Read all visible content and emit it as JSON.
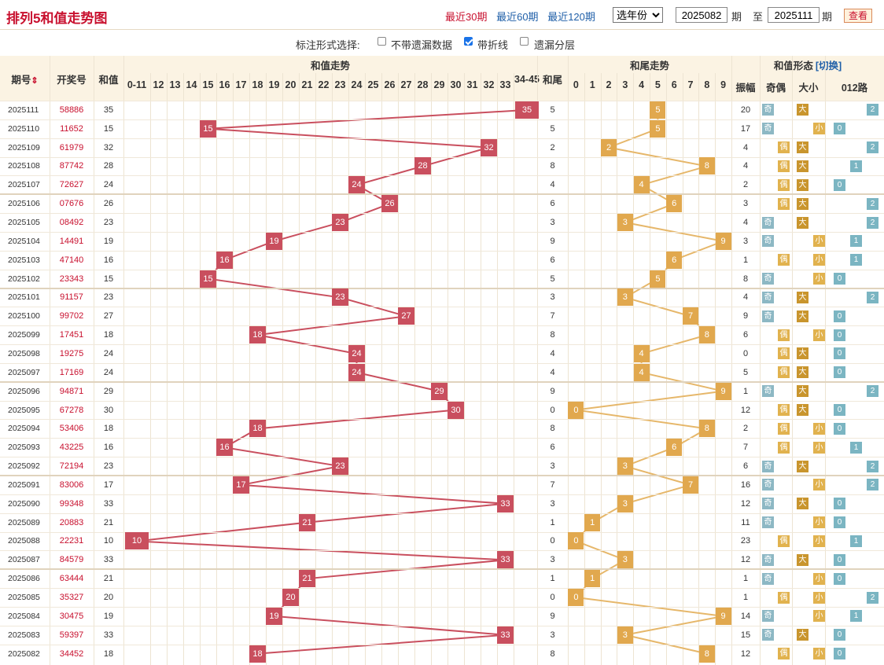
{
  "page": {
    "title": "排列5和值走势图"
  },
  "toolbar": {
    "links": [
      "最近30期",
      "最近60期",
      "最近120期"
    ],
    "active_link": "最近30期",
    "year_select": "选年份",
    "from_value": "2025082",
    "qi1": "期",
    "zhi": "至",
    "to_value": "2025111",
    "qi2": "期",
    "query_button": "查看"
  },
  "options": {
    "label": "标注形式选择:",
    "items": [
      {
        "label": "不带遗漏数据",
        "checked": false
      },
      {
        "label": "带折线",
        "checked": true
      },
      {
        "label": "遗漏分层",
        "checked": false
      }
    ]
  },
  "header": {
    "period": "期号",
    "sort_glyph": "⇕",
    "number": "开奖号",
    "sum": "和值",
    "sum_trend": "和值走势",
    "sum_cols": [
      "0-11",
      "12",
      "13",
      "14",
      "15",
      "16",
      "17",
      "18",
      "19",
      "20",
      "21",
      "22",
      "23",
      "24",
      "25",
      "26",
      "27",
      "28",
      "29",
      "30",
      "31",
      "32",
      "33",
      "34-45"
    ],
    "tail": "和尾",
    "tail_trend": "和尾走势",
    "tail_cols": [
      "0",
      "1",
      "2",
      "3",
      "4",
      "5",
      "6",
      "7",
      "8",
      "9"
    ],
    "form": "和值形态",
    "switch": "[切换]",
    "amplitude": "振幅",
    "odd_even": "奇偶",
    "big_small": "大小",
    "route": "012路"
  },
  "labels": {
    "odd": "奇",
    "even": "偶",
    "big": "大",
    "small": "小"
  },
  "rows": [
    {
      "p": "2025111",
      "n": "58886",
      "s": 35,
      "t": 5,
      "a": 20,
      "oe": "奇",
      "bs": "大",
      "r": 2
    },
    {
      "p": "2025110",
      "n": "11652",
      "s": 15,
      "t": 5,
      "a": 17,
      "oe": "奇",
      "bs": "小",
      "r": 0
    },
    {
      "p": "2025109",
      "n": "61979",
      "s": 32,
      "t": 2,
      "a": 4,
      "oe": "偶",
      "bs": "大",
      "r": 2
    },
    {
      "p": "2025108",
      "n": "87742",
      "s": 28,
      "t": 8,
      "a": 4,
      "oe": "偶",
      "bs": "大",
      "r": 1
    },
    {
      "p": "2025107",
      "n": "72627",
      "s": 24,
      "t": 4,
      "a": 2,
      "oe": "偶",
      "bs": "大",
      "r": 0
    },
    {
      "p": "2025106",
      "n": "07676",
      "s": 26,
      "t": 6,
      "a": 3,
      "oe": "偶",
      "bs": "大",
      "r": 2
    },
    {
      "p": "2025105",
      "n": "08492",
      "s": 23,
      "t": 3,
      "a": 4,
      "oe": "奇",
      "bs": "大",
      "r": 2
    },
    {
      "p": "2025104",
      "n": "14491",
      "s": 19,
      "t": 9,
      "a": 3,
      "oe": "奇",
      "bs": "小",
      "r": 1
    },
    {
      "p": "2025103",
      "n": "47140",
      "s": 16,
      "t": 6,
      "a": 1,
      "oe": "偶",
      "bs": "小",
      "r": 1
    },
    {
      "p": "2025102",
      "n": "23343",
      "s": 15,
      "t": 5,
      "a": 8,
      "oe": "奇",
      "bs": "小",
      "r": 0
    },
    {
      "p": "2025101",
      "n": "91157",
      "s": 23,
      "t": 3,
      "a": 4,
      "oe": "奇",
      "bs": "大",
      "r": 2
    },
    {
      "p": "2025100",
      "n": "99702",
      "s": 27,
      "t": 7,
      "a": 9,
      "oe": "奇",
      "bs": "大",
      "r": 0
    },
    {
      "p": "2025099",
      "n": "17451",
      "s": 18,
      "t": 8,
      "a": 6,
      "oe": "偶",
      "bs": "小",
      "r": 0
    },
    {
      "p": "2025098",
      "n": "19275",
      "s": 24,
      "t": 4,
      "a": 0,
      "oe": "偶",
      "bs": "大",
      "r": 0
    },
    {
      "p": "2025097",
      "n": "17169",
      "s": 24,
      "t": 4,
      "a": 5,
      "oe": "偶",
      "bs": "大",
      "r": 0
    },
    {
      "p": "2025096",
      "n": "94871",
      "s": 29,
      "t": 9,
      "a": 1,
      "oe": "奇",
      "bs": "大",
      "r": 2
    },
    {
      "p": "2025095",
      "n": "67278",
      "s": 30,
      "t": 0,
      "a": 12,
      "oe": "偶",
      "bs": "大",
      "r": 0
    },
    {
      "p": "2025094",
      "n": "53406",
      "s": 18,
      "t": 8,
      "a": 2,
      "oe": "偶",
      "bs": "小",
      "r": 0
    },
    {
      "p": "2025093",
      "n": "43225",
      "s": 16,
      "t": 6,
      "a": 7,
      "oe": "偶",
      "bs": "小",
      "r": 1
    },
    {
      "p": "2025092",
      "n": "72194",
      "s": 23,
      "t": 3,
      "a": 6,
      "oe": "奇",
      "bs": "大",
      "r": 2
    },
    {
      "p": "2025091",
      "n": "83006",
      "s": 17,
      "t": 7,
      "a": 16,
      "oe": "奇",
      "bs": "小",
      "r": 2
    },
    {
      "p": "2025090",
      "n": "99348",
      "s": 33,
      "t": 3,
      "a": 12,
      "oe": "奇",
      "bs": "大",
      "r": 0
    },
    {
      "p": "2025089",
      "n": "20883",
      "s": 21,
      "t": 1,
      "a": 11,
      "oe": "奇",
      "bs": "小",
      "r": 0
    },
    {
      "p": "2025088",
      "n": "22231",
      "s": 10,
      "t": 0,
      "a": 23,
      "oe": "偶",
      "bs": "小",
      "r": 1
    },
    {
      "p": "2025087",
      "n": "84579",
      "s": 33,
      "t": 3,
      "a": 12,
      "oe": "奇",
      "bs": "大",
      "r": 0
    },
    {
      "p": "2025086",
      "n": "63444",
      "s": 21,
      "t": 1,
      "a": 1,
      "oe": "奇",
      "bs": "小",
      "r": 0
    },
    {
      "p": "2025085",
      "n": "35327",
      "s": 20,
      "t": 0,
      "a": 1,
      "oe": "偶",
      "bs": "小",
      "r": 2
    },
    {
      "p": "2025084",
      "n": "30475",
      "s": 19,
      "t": 9,
      "a": 14,
      "oe": "奇",
      "bs": "小",
      "r": 1
    },
    {
      "p": "2025083",
      "n": "59397",
      "s": 33,
      "t": 3,
      "a": 15,
      "oe": "奇",
      "bs": "大",
      "r": 0
    },
    {
      "p": "2025082",
      "n": "34452",
      "s": 18,
      "t": 8,
      "a": 12,
      "oe": "偶",
      "bs": "小",
      "r": 0
    }
  ]
}
